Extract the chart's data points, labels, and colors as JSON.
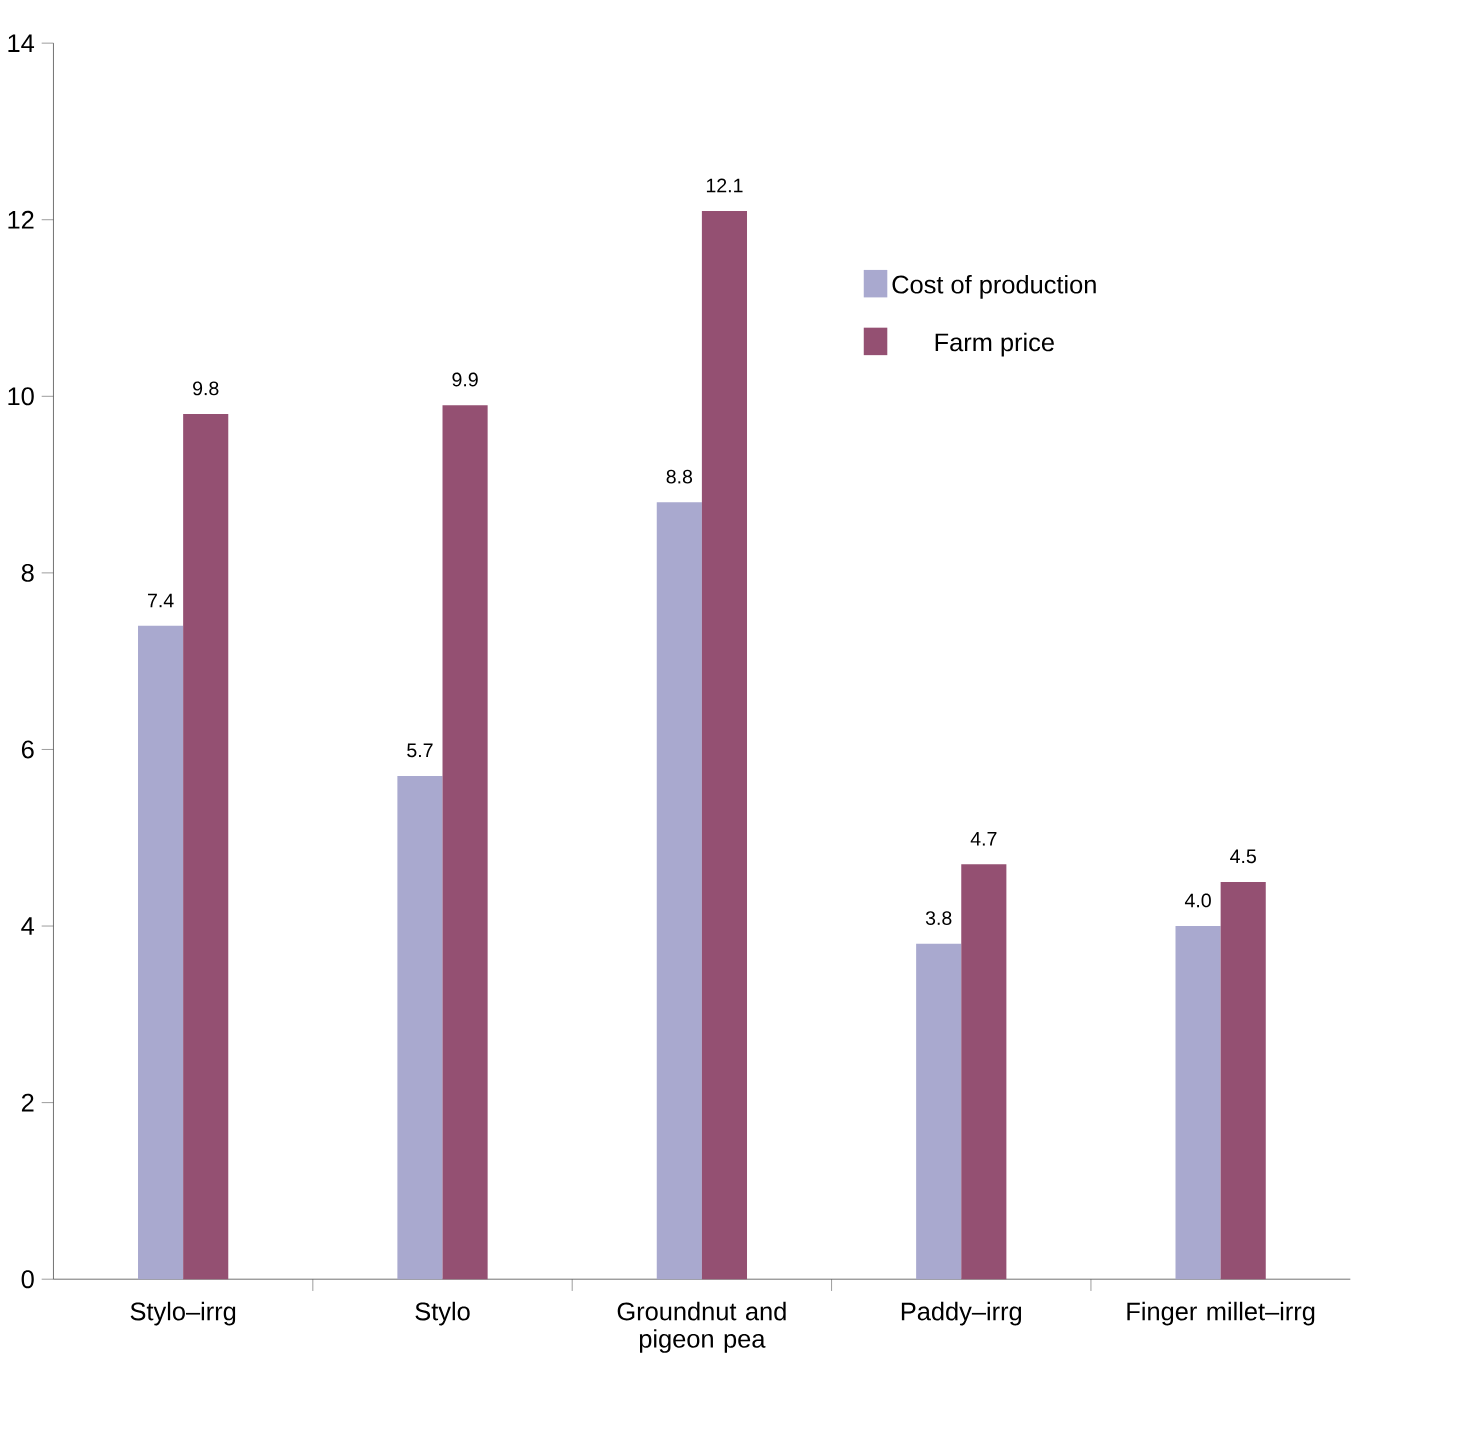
{
  "chart_data": {
    "type": "bar",
    "categories": [
      "Stylo–irrg",
      "Stylo",
      "Groundnut and pigeon pea",
      "Paddy–irrg",
      "Finger millet–irrg"
    ],
    "series": [
      {
        "name": "Cost of production",
        "color": "#a9a9cf",
        "values": [
          7.4,
          5.7,
          8.8,
          3.8,
          4.0
        ],
        "value_labels": [
          "7.4",
          "5.7",
          "8.8",
          "3.8",
          "4.0"
        ]
      },
      {
        "name": "Farm price",
        "color": "#945072",
        "values": [
          9.8,
          9.9,
          12.1,
          4.7,
          4.5
        ],
        "value_labels": [
          "9.8",
          "9.9",
          "12.1",
          "4.7",
          "4.5"
        ]
      }
    ],
    "ylim": [
      0,
      14
    ],
    "yticks": [
      0,
      2,
      4,
      6,
      8,
      10,
      12,
      14
    ],
    "grid": false,
    "legend": "top right"
  }
}
